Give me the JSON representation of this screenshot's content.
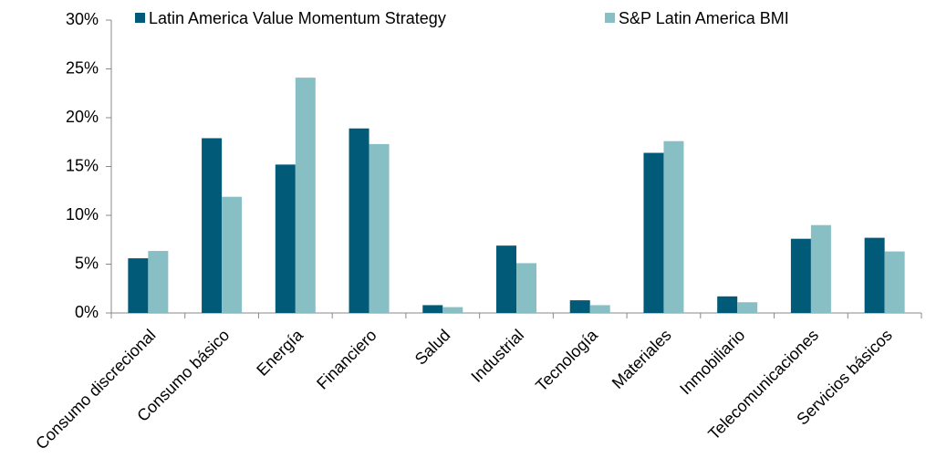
{
  "chart_data": {
    "type": "bar",
    "categories": [
      "Consumo discrecional",
      "Consumo básico",
      "Energía",
      "Financiero",
      "Salud",
      "Industrial",
      "Tecnología",
      "Materiales",
      "Inmobiliario",
      "Telecomunicaciones",
      "Servicios básicos"
    ],
    "series": [
      {
        "name": "Latin America Value Momentum Strategy",
        "color": "#005a78",
        "values": [
          5.6,
          17.9,
          15.2,
          18.9,
          0.8,
          6.9,
          1.3,
          16.4,
          1.7,
          7.6,
          7.7
        ]
      },
      {
        "name": "S&P Latin America BMI",
        "color": "#88bfc4",
        "values": [
          6.35,
          11.9,
          24.1,
          17.3,
          0.6,
          5.1,
          0.8,
          17.6,
          1.1,
          9.0,
          6.3
        ]
      }
    ],
    "ylim": [
      0,
      30
    ],
    "yticks": [
      {
        "value": 0,
        "label": "0%"
      },
      {
        "value": 5,
        "label": "5%"
      },
      {
        "value": 10,
        "label": "10%"
      },
      {
        "value": 15,
        "label": "15%"
      },
      {
        "value": 20,
        "label": "20%"
      },
      {
        "value": 25,
        "label": "25%"
      },
      {
        "value": 30,
        "label": "30%"
      }
    ],
    "grid": false,
    "legend": "top"
  }
}
